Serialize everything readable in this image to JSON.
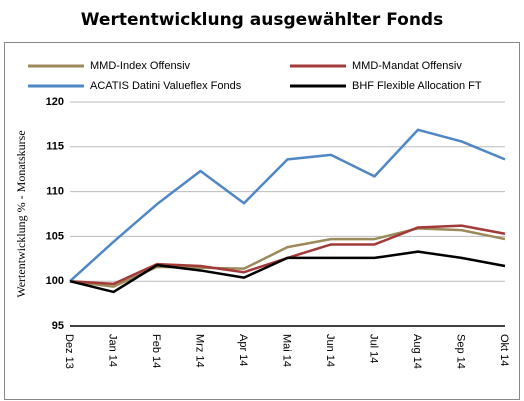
{
  "chart_data": {
    "type": "line",
    "title": "Wertentwicklung ausgewählter Fonds",
    "y_label": "Wertentwicklung % - Monatskurse",
    "categories": [
      "Dez 13",
      "Jan 14",
      "Feb 14",
      "Mrz 14",
      "Apr 14",
      "Mai 14",
      "Jun 14",
      "Jul 14",
      "Aug 14",
      "Sep 14",
      "Okt 14"
    ],
    "series": [
      {
        "name": "MMD-Index Offensiv",
        "color": "#9b8a5a",
        "values": [
          100,
          99.4,
          101.6,
          101.5,
          101.4,
          103.8,
          104.7,
          104.7,
          105.9,
          105.7,
          104.7
        ]
      },
      {
        "name": "MMD-Mandat Offensiv",
        "color": "#a33a3a",
        "values": [
          100,
          99.7,
          101.9,
          101.7,
          101.0,
          102.6,
          104.1,
          104.1,
          106.0,
          106.2,
          105.3
        ]
      },
      {
        "name": "ACATIS Datini Valueflex Fonds",
        "color": "#4f87c5",
        "values": [
          100,
          104.4,
          108.6,
          112.3,
          108.7,
          113.6,
          114.1,
          111.7,
          116.9,
          115.6,
          113.6
        ]
      },
      {
        "name": "BHF Flexible Allocation FT",
        "color": "#000000",
        "values": [
          100,
          98.8,
          101.8,
          101.2,
          100.4,
          102.6,
          102.6,
          102.6,
          103.3,
          102.6,
          101.7
        ]
      }
    ],
    "ylim": [
      95,
      120
    ],
    "yticks": [
      95,
      100,
      105,
      110,
      115,
      120
    ],
    "grid": true,
    "legend": "top"
  }
}
